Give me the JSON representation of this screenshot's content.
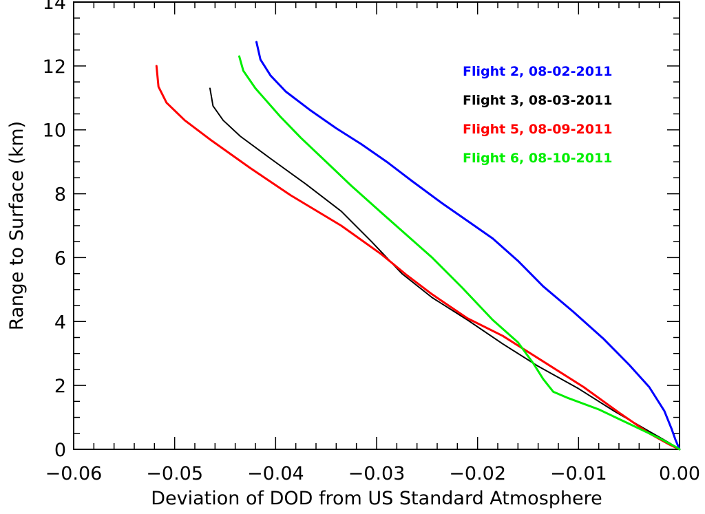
{
  "chart_data": {
    "type": "line",
    "xlabel": "Deviation of DOD from US Standard Atmosphere",
    "ylabel": "Range to Surface (km)",
    "xlim": [
      -0.06,
      0.0
    ],
    "ylim": [
      0,
      14
    ],
    "x_ticks": [
      -0.06,
      -0.05,
      -0.04,
      -0.03,
      -0.02,
      -0.01,
      0.0
    ],
    "x_tick_labels": [
      "−0.06",
      "−0.05",
      "−0.04",
      "−0.03",
      "−0.02",
      "−0.01",
      "0.00"
    ],
    "y_ticks": [
      0,
      2,
      4,
      6,
      8,
      10,
      12,
      14
    ],
    "y_tick_labels": [
      "0",
      "2",
      "4",
      "6",
      "8",
      "10",
      "12",
      "14"
    ],
    "legend_position": "top-right",
    "grid": false,
    "series": [
      {
        "name": "Flight 2, 08-02-2011",
        "color": "#0000ff",
        "x": [
          -0.0419,
          -0.0415,
          -0.0405,
          -0.039,
          -0.0365,
          -0.034,
          -0.0315,
          -0.029,
          -0.0265,
          -0.0235,
          -0.021,
          -0.0185,
          -0.016,
          -0.0135,
          -0.0105,
          -0.0075,
          -0.005,
          -0.003,
          -0.0015,
          -0.0008,
          -0.0004,
          0.0
        ],
        "y": [
          12.75,
          12.2,
          11.7,
          11.2,
          10.6,
          10.05,
          9.55,
          9.0,
          8.4,
          7.7,
          7.15,
          6.6,
          5.9,
          5.1,
          4.3,
          3.45,
          2.65,
          1.95,
          1.2,
          0.65,
          0.3,
          0.0
        ]
      },
      {
        "name": "Flight 3, 08-03-2011",
        "color": "#000000",
        "x": [
          -0.0465,
          -0.0462,
          -0.0452,
          -0.0435,
          -0.0405,
          -0.037,
          -0.0335,
          -0.0305,
          -0.0275,
          -0.0245,
          -0.021,
          -0.0175,
          -0.014,
          -0.01,
          -0.0065,
          -0.0035,
          -0.001,
          0.0
        ],
        "y": [
          11.3,
          10.75,
          10.3,
          9.8,
          9.1,
          8.3,
          7.45,
          6.5,
          5.5,
          4.75,
          4.05,
          3.3,
          2.6,
          1.9,
          1.2,
          0.65,
          0.2,
          0.0
        ]
      },
      {
        "name": "Flight 5, 08-09-2011",
        "color": "#ff0000",
        "x": [
          -0.0518,
          -0.0516,
          -0.0508,
          -0.049,
          -0.0465,
          -0.0425,
          -0.0385,
          -0.0335,
          -0.0295,
          -0.027,
          -0.0245,
          -0.021,
          -0.0175,
          -0.0135,
          -0.0095,
          -0.006,
          -0.003,
          -0.001,
          0.0
        ],
        "y": [
          12.0,
          11.35,
          10.85,
          10.3,
          9.7,
          8.8,
          7.95,
          7.0,
          6.1,
          5.45,
          4.85,
          4.1,
          3.55,
          2.75,
          1.95,
          1.15,
          0.5,
          0.15,
          0.0
        ]
      },
      {
        "name": "Flight 6, 08-10-2011",
        "color": "#00ee00",
        "x": [
          -0.0436,
          -0.0432,
          -0.042,
          -0.0395,
          -0.0375,
          -0.035,
          -0.0325,
          -0.0295,
          -0.027,
          -0.0245,
          -0.0215,
          -0.0185,
          -0.016,
          -0.0145,
          -0.0135,
          -0.0125,
          -0.011,
          -0.008,
          -0.005,
          -0.002,
          -0.0005,
          0.0
        ],
        "y": [
          12.3,
          11.85,
          11.3,
          10.4,
          9.75,
          9.0,
          8.25,
          7.4,
          6.7,
          6.0,
          5.05,
          4.05,
          3.35,
          2.7,
          2.2,
          1.8,
          1.6,
          1.25,
          0.8,
          0.35,
          0.1,
          0.0
        ]
      }
    ]
  }
}
